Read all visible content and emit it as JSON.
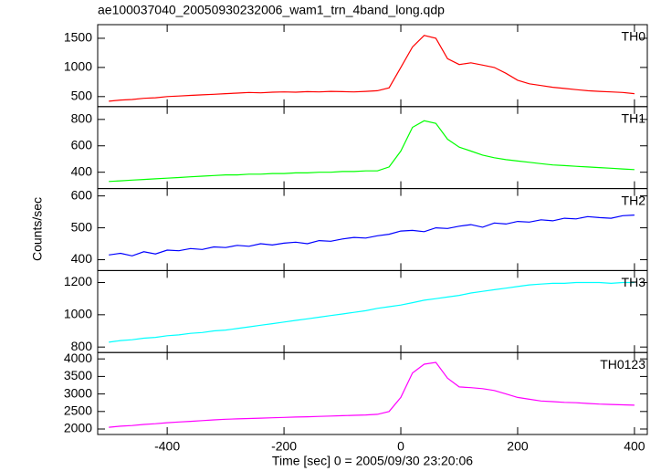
{
  "chart_data": {
    "type": "line",
    "title": "ae100037040_20050930232006_wam1_trn_4band_long.qdp",
    "xlabel": "Time [sec] 0 = 2005/09/30 23:20:06",
    "ylabel": "Counts/sec",
    "xlim": [
      -519,
      422
    ],
    "xticks": [
      -400,
      -200,
      0,
      200,
      400
    ],
    "x": [
      -500,
      -480,
      -460,
      -440,
      -420,
      -400,
      -380,
      -360,
      -340,
      -320,
      -300,
      -280,
      -260,
      -240,
      -220,
      -200,
      -180,
      -160,
      -140,
      -120,
      -100,
      -80,
      -60,
      -40,
      -20,
      0,
      20,
      40,
      60,
      80,
      100,
      120,
      140,
      160,
      180,
      200,
      220,
      240,
      260,
      280,
      300,
      320,
      340,
      360,
      380,
      400
    ],
    "series": [
      {
        "name": "TH0",
        "color": "#ff0000",
        "ylim": [
          328,
          1734
        ],
        "yticks": [
          500,
          1000,
          1500
        ],
        "values": [
          420,
          440,
          450,
          470,
          480,
          500,
          510,
          520,
          530,
          540,
          550,
          560,
          570,
          565,
          575,
          580,
          575,
          585,
          580,
          590,
          585,
          580,
          590,
          600,
          650,
          1000,
          1350,
          1550,
          1500,
          1150,
          1050,
          1080,
          1040,
          1000,
          900,
          780,
          720,
          690,
          660,
          640,
          620,
          600,
          590,
          580,
          570,
          550
        ]
      },
      {
        "name": "TH1",
        "color": "#00ff00",
        "ylim": [
          276,
          897
        ],
        "yticks": [
          400,
          600,
          800
        ],
        "values": [
          330,
          335,
          340,
          345,
          350,
          355,
          360,
          365,
          370,
          375,
          380,
          380,
          385,
          385,
          390,
          390,
          395,
          395,
          400,
          400,
          405,
          405,
          410,
          410,
          440,
          560,
          740,
          790,
          770,
          650,
          590,
          560,
          530,
          510,
          495,
          485,
          475,
          465,
          455,
          450,
          445,
          440,
          435,
          430,
          425,
          420
        ]
      },
      {
        "name": "TH2",
        "color": "#0000ff",
        "ylim": [
          366,
          623
        ],
        "yticks": [
          400,
          500,
          600
        ],
        "values": [
          415,
          420,
          412,
          425,
          418,
          430,
          428,
          435,
          432,
          440,
          438,
          445,
          442,
          450,
          446,
          452,
          455,
          450,
          460,
          458,
          465,
          470,
          468,
          475,
          480,
          490,
          492,
          488,
          500,
          498,
          505,
          510,
          502,
          515,
          512,
          520,
          518,
          525,
          522,
          530,
          528,
          535,
          532,
          530,
          538,
          540
        ]
      },
      {
        "name": "TH3",
        "color": "#00ffff",
        "ylim": [
          766,
          1274
        ],
        "yticks": [
          800,
          1000,
          1200
        ],
        "values": [
          830,
          840,
          845,
          855,
          860,
          870,
          875,
          885,
          890,
          900,
          905,
          915,
          925,
          935,
          945,
          955,
          965,
          975,
          985,
          995,
          1005,
          1015,
          1025,
          1040,
          1050,
          1060,
          1075,
          1090,
          1100,
          1110,
          1120,
          1135,
          1145,
          1155,
          1165,
          1175,
          1185,
          1190,
          1195,
          1195,
          1200,
          1200,
          1200,
          1195,
          1200,
          1200
        ]
      },
      {
        "name": "TH0123",
        "color": "#ff00ff",
        "ylim": [
          1844,
          4182
        ],
        "yticks": [
          2000,
          2500,
          3000,
          3500,
          4000
        ],
        "values": [
          2050,
          2080,
          2100,
          2130,
          2150,
          2180,
          2200,
          2220,
          2240,
          2260,
          2280,
          2290,
          2300,
          2310,
          2320,
          2330,
          2340,
          2350,
          2360,
          2370,
          2380,
          2390,
          2400,
          2420,
          2500,
          2900,
          3600,
          3850,
          3900,
          3450,
          3200,
          3180,
          3150,
          3100,
          3000,
          2900,
          2850,
          2800,
          2780,
          2760,
          2750,
          2730,
          2710,
          2700,
          2690,
          2680
        ]
      }
    ]
  }
}
